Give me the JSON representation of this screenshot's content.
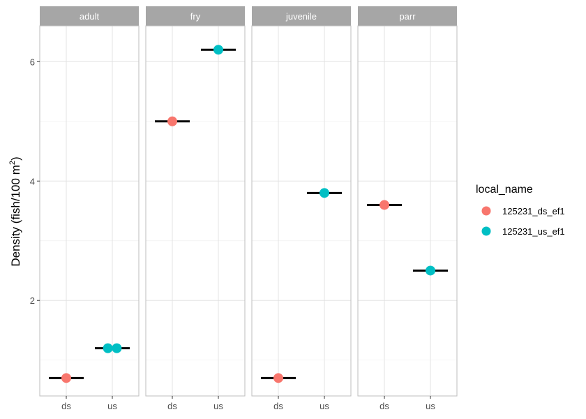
{
  "chart_data": {
    "type": "scatter",
    "facet_variable": "life stage",
    "facets": [
      "adult",
      "fry",
      "juvenile",
      "parr"
    ],
    "x_categories": [
      "ds",
      "us"
    ],
    "ylabel_main": "Density (fish/100 m",
    "ylabel_superscript": "2",
    "ylabel_close": ")",
    "ylim": [
      0.4,
      6.6
    ],
    "y_ticks": [
      2,
      4,
      6
    ],
    "y_tick_labels": [
      "2",
      "4",
      "6"
    ],
    "y_minor_ticks": [
      1,
      3,
      5
    ],
    "legend": {
      "title": "local_name",
      "position": "right",
      "entries": [
        {
          "label": "125231_ds_ef1",
          "color": "#F8766D"
        },
        {
          "label": "125231_us_ef1",
          "color": "#00BFC4"
        }
      ]
    },
    "colors": {
      "125231_ds_ef1": "#F8766D",
      "125231_us_ef1": "#00BFC4",
      "mean_bar": "#000000",
      "strip_bg": "#A6A6A6",
      "grid": "#E3E3E3"
    },
    "points": [
      {
        "facet": "adult",
        "x": "ds",
        "y": 0.7,
        "series": "125231_ds_ef1",
        "jitter": 0
      },
      {
        "facet": "adult",
        "x": "us",
        "y": 1.2,
        "series": "125231_us_ef1",
        "jitter": -0.1
      },
      {
        "facet": "adult",
        "x": "us",
        "y": 1.2,
        "series": "125231_us_ef1",
        "jitter": 0.1
      },
      {
        "facet": "fry",
        "x": "ds",
        "y": 5.0,
        "series": "125231_ds_ef1",
        "jitter": 0
      },
      {
        "facet": "fry",
        "x": "us",
        "y": 6.2,
        "series": "125231_us_ef1",
        "jitter": 0
      },
      {
        "facet": "juvenile",
        "x": "ds",
        "y": 0.7,
        "series": "125231_ds_ef1",
        "jitter": 0
      },
      {
        "facet": "juvenile",
        "x": "us",
        "y": 3.8,
        "series": "125231_us_ef1",
        "jitter": 0
      },
      {
        "facet": "parr",
        "x": "ds",
        "y": 3.6,
        "series": "125231_ds_ef1",
        "jitter": 0
      },
      {
        "facet": "parr",
        "x": "us",
        "y": 2.5,
        "series": "125231_us_ef1",
        "jitter": 0
      }
    ],
    "means": [
      {
        "facet": "adult",
        "x": "ds",
        "y": 0.7
      },
      {
        "facet": "adult",
        "x": "us",
        "y": 1.2
      },
      {
        "facet": "fry",
        "x": "ds",
        "y": 5.0
      },
      {
        "facet": "fry",
        "x": "us",
        "y": 6.2
      },
      {
        "facet": "juvenile",
        "x": "ds",
        "y": 0.7
      },
      {
        "facet": "juvenile",
        "x": "us",
        "y": 3.8
      },
      {
        "facet": "parr",
        "x": "ds",
        "y": 3.6
      },
      {
        "facet": "parr",
        "x": "us",
        "y": 2.5
      }
    ],
    "grid": true
  }
}
